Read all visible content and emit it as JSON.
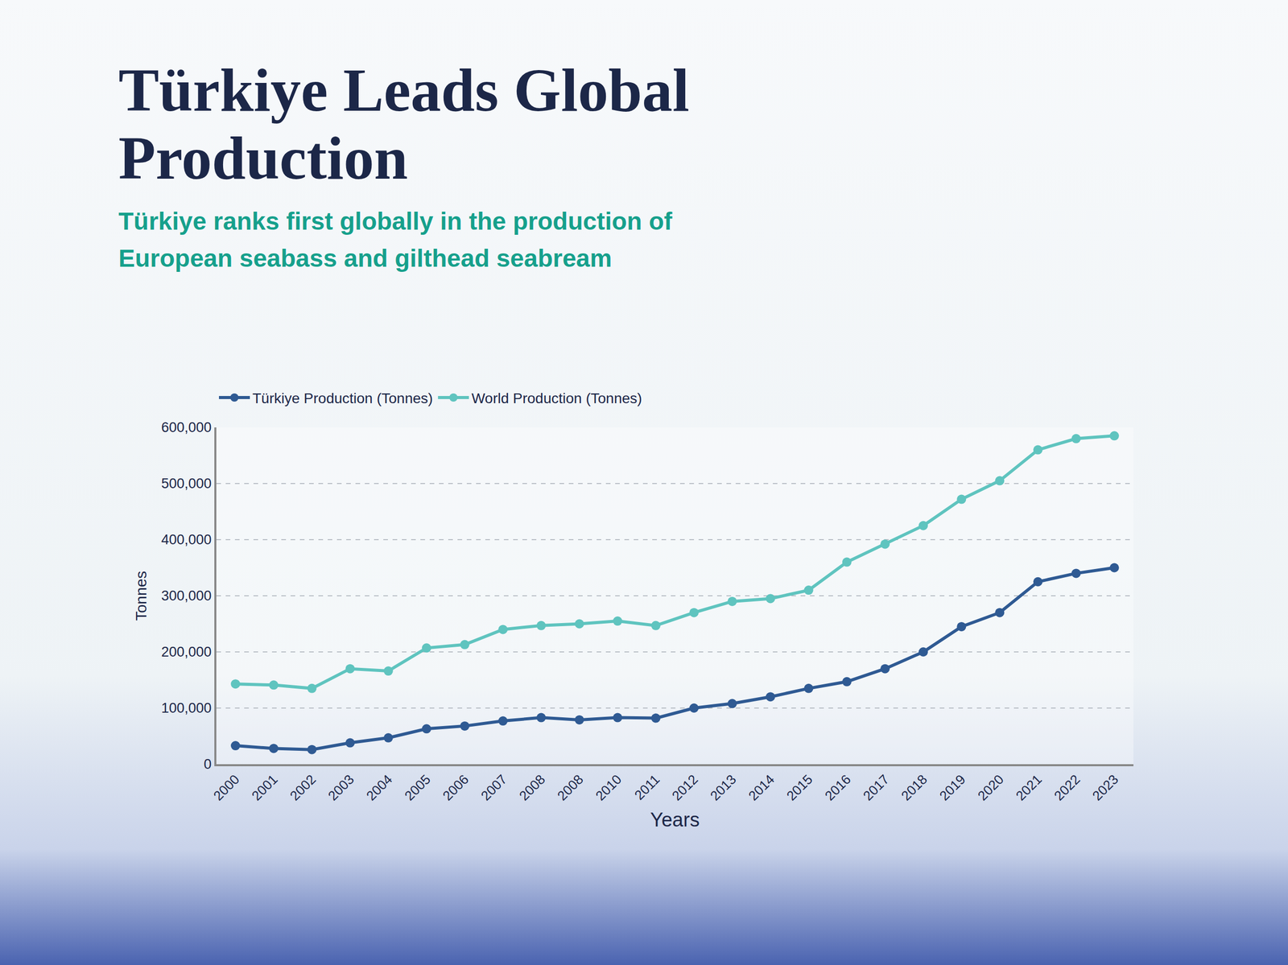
{
  "chart_data": {
    "type": "line",
    "title": "Türkiye Leads Global Production",
    "subtitle": "Türkiye ranks first globally in the production of European seabass and gilthead seabream",
    "x_label": "Years",
    "y_label": "Tonnes",
    "categories": [
      "2000",
      "2001",
      "2002",
      "2003",
      "2004",
      "2005",
      "2006",
      "2007",
      "2008",
      "2008",
      "2010",
      "2011",
      "2012",
      "2013",
      "2014",
      "2015",
      "2016",
      "2017",
      "2018",
      "2019",
      "2020",
      "2021",
      "2022",
      "2023"
    ],
    "series": [
      {
        "name": "Türkiye Production (Tonnes)",
        "color": "#2f5a93",
        "marker": "circle",
        "values": [
          33000,
          28000,
          26000,
          38000,
          47000,
          63000,
          68000,
          77000,
          83000,
          79000,
          83000,
          82000,
          100000,
          108000,
          120000,
          135000,
          147000,
          170000,
          200000,
          245000,
          270000,
          325000,
          340000,
          350000
        ]
      },
      {
        "name": "World Production (Tonnes)",
        "color": "#5fc4bf",
        "marker": "circle",
        "values": [
          143000,
          141000,
          135000,
          170000,
          166000,
          207000,
          213000,
          240000,
          247000,
          250000,
          255000,
          247000,
          270000,
          290000,
          295000,
          310000,
          360000,
          392000,
          425000,
          472000,
          505000,
          560000,
          580000,
          585000
        ]
      }
    ],
    "ylim": [
      0,
      600000
    ],
    "yticks": [
      0,
      {
        "value": 100000,
        "label": "100,000"
      },
      {
        "value": 200000,
        "label": "200,000"
      },
      {
        "value": 300000,
        "label": "300,000"
      },
      {
        "value": 400000,
        "label": "400,000"
      },
      {
        "value": 500000,
        "label": "500,000"
      },
      {
        "value": 600000,
        "label": "600,000"
      }
    ],
    "grid": true,
    "legend": "top left"
  }
}
